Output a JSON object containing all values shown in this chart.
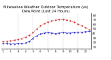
{
  "title": "Milwaukee Weather Outdoor Temperature (vs) Dew Point (Last 24 Hours)",
  "temp": [
    22,
    23,
    24,
    25,
    27,
    29,
    32,
    36,
    42,
    50,
    57,
    62,
    66,
    68,
    70,
    71,
    71,
    70,
    68,
    65,
    61,
    57,
    53,
    49
  ],
  "dewpoint": [
    18,
    18,
    17,
    17,
    18,
    18,
    19,
    22,
    29,
    35,
    39,
    41,
    42,
    41,
    40,
    41,
    42,
    41,
    41,
    42,
    43,
    43,
    44,
    45
  ],
  "x_labels": [
    "1",
    "",
    "2",
    "",
    "3",
    "",
    "4",
    "",
    "5",
    "",
    "6",
    "",
    "7",
    "",
    "8",
    "",
    "9",
    "",
    "10",
    "",
    "11",
    "",
    "12",
    ""
  ],
  "y_ticks": [
    10,
    20,
    30,
    40,
    50,
    60,
    70,
    80
  ],
  "ylim": [
    5,
    85
  ],
  "temp_color": "#cc0000",
  "dewpoint_color": "#0000bb",
  "background_color": "#ffffff",
  "grid_color": "#888888",
  "title_color": "#000000",
  "title_fontsize": 3.8,
  "tick_fontsize": 3.0,
  "vline_positions": [
    4,
    8,
    12,
    16,
    20
  ]
}
